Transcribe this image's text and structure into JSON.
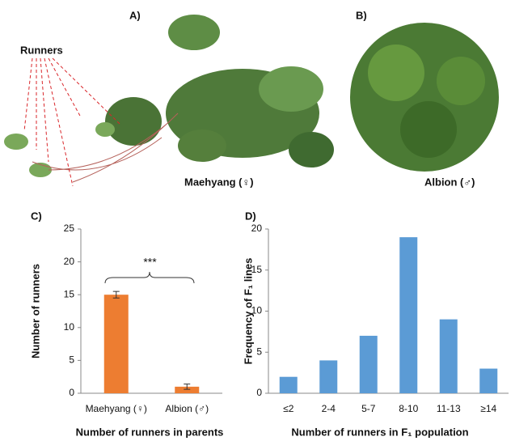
{
  "photos": {
    "panel_a": "A)",
    "panel_b": "B)",
    "runners": "Runners",
    "caption_a": "Maehyang (♀)",
    "caption_b": "Albion (♂)"
  },
  "chart_data": [
    {
      "type": "bar",
      "panel": "C)",
      "categories": [
        "Maehyang (♀)",
        "Albion (♂)"
      ],
      "values": [
        15,
        1
      ],
      "errors": [
        0.5,
        0.4
      ],
      "color": "#ed7d31",
      "ylim": [
        0,
        25
      ],
      "yticks": [
        0,
        5,
        10,
        15,
        20,
        25
      ],
      "xlabel": "Number of runners in parents",
      "ylabel": "Number of runners",
      "annotation": "***"
    },
    {
      "type": "bar",
      "panel": "D)",
      "categories": [
        "≤2",
        "2-4",
        "5-7",
        "8-10",
        "11-13",
        "≥14"
      ],
      "values": [
        2,
        4,
        7,
        19,
        9,
        3
      ],
      "color": "#5b9bd5",
      "ylim": [
        0,
        20
      ],
      "yticks": [
        0,
        5,
        10,
        15,
        20
      ],
      "xlabel": "Number of runners in F₁ population",
      "ylabel": "Frequency of F₁ lines"
    }
  ]
}
